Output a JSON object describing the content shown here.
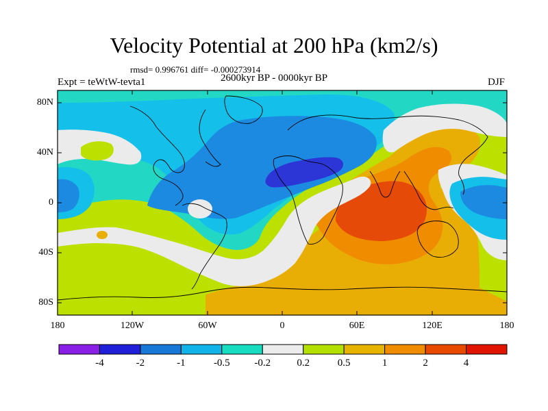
{
  "title": "Velocity Potential at 200 hPa (km2/s)",
  "stats": "rmsd= 0.996761 diff= -0.000273914",
  "experiment": "Expt = teWtW-tevta1",
  "period": "2600kyr BP - 0000kyr BP",
  "season": "DJF",
  "lat_ticks": [
    "80N",
    "40N",
    "0",
    "40S",
    "80S"
  ],
  "lon_ticks": [
    "180",
    "120W",
    "60W",
    "0",
    "60E",
    "120E",
    "180"
  ],
  "colorbar": {
    "labels": [
      "-4",
      "-2",
      "-1",
      "-0.5",
      "-0.2",
      "0.2",
      "0.5",
      "1",
      "2",
      "4"
    ],
    "colors": [
      "#8a20e6",
      "#2020d8",
      "#1878d8",
      "#10b4e8",
      "#18dcc0",
      "#ececec",
      "#b4e000",
      "#e6b400",
      "#f08c00",
      "#e84a00",
      "#e01400"
    ]
  },
  "colors": {
    "c_m2": "#2c36d6",
    "c_m1": "#1c8ae0",
    "c_m05": "#14c0ea",
    "c_m02": "#22d8c4",
    "c_0": "#ebebeb",
    "c_p02": "#bce000",
    "c_p05": "#e8ae06",
    "c_p1": "#f08c00",
    "c_p2": "#e64a08"
  }
}
